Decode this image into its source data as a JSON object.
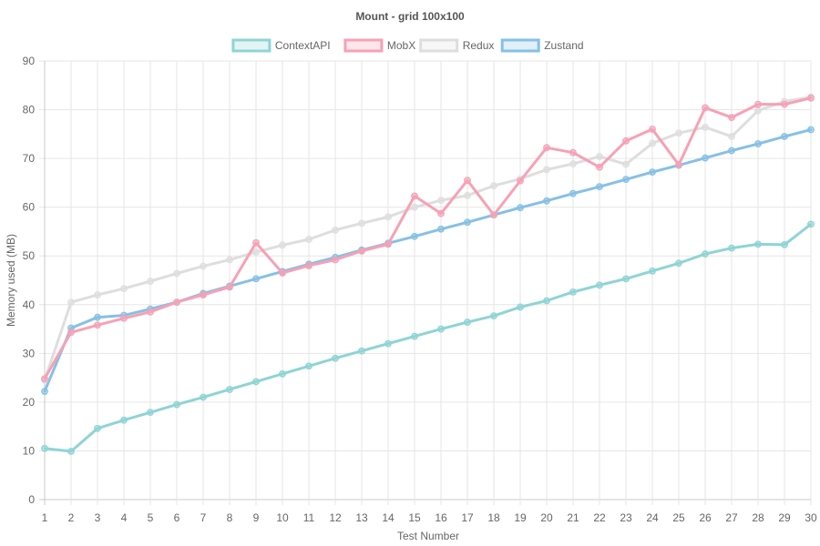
{
  "chart_data": {
    "type": "line",
    "title": "Mount - grid 100x100",
    "xlabel": "Test Number",
    "ylabel": "Memory used (MB)",
    "x": [
      1,
      2,
      3,
      4,
      5,
      6,
      7,
      8,
      9,
      10,
      11,
      12,
      13,
      14,
      15,
      16,
      17,
      18,
      19,
      20,
      21,
      22,
      23,
      24,
      25,
      26,
      27,
      28,
      29,
      30
    ],
    "ylim": [
      0,
      90
    ],
    "yticks": [
      0,
      10,
      20,
      30,
      40,
      50,
      60,
      70,
      80,
      90
    ],
    "grid": true,
    "legend_position": "top",
    "series": [
      {
        "name": "ContextAPI",
        "color": "#8fd4d4",
        "values": [
          10.5,
          9.9,
          14.6,
          16.3,
          17.9,
          19.5,
          21.0,
          22.6,
          24.2,
          25.8,
          27.4,
          29.0,
          30.5,
          32.0,
          33.5,
          35.0,
          36.4,
          37.7,
          39.5,
          40.8,
          42.6,
          44.0,
          45.3,
          46.9,
          48.5,
          50.4,
          51.6,
          52.4,
          52.3,
          56.5
        ]
      },
      {
        "name": "MobX",
        "color": "#f7a1b5",
        "values": [
          24.8,
          34.3,
          35.8,
          37.2,
          38.5,
          40.5,
          42.0,
          43.6,
          52.7,
          46.5,
          48.0,
          49.2,
          51.0,
          52.4,
          62.3,
          58.7,
          65.5,
          58.4,
          65.4,
          72.2,
          71.2,
          68.2,
          73.6,
          76.0,
          68.7,
          80.4,
          78.4,
          81.1,
          81.1,
          82.4
        ]
      },
      {
        "name": "Redux",
        "color": "#dedede",
        "values": [
          24.5,
          40.5,
          42.0,
          43.3,
          44.8,
          46.4,
          47.9,
          49.2,
          50.8,
          52.2,
          53.4,
          55.3,
          56.7,
          58.0,
          60.0,
          61.4,
          62.4,
          64.4,
          65.8,
          67.7,
          68.9,
          70.4,
          68.8,
          73.1,
          75.2,
          76.4,
          74.5,
          79.8,
          81.7,
          82.6
        ]
      },
      {
        "name": "Zustand",
        "color": "#86c0e6",
        "values": [
          22.2,
          35.2,
          37.4,
          37.8,
          39.1,
          40.5,
          42.3,
          43.8,
          45.3,
          46.8,
          48.3,
          49.7,
          51.2,
          52.6,
          54.0,
          55.5,
          56.9,
          58.4,
          59.9,
          61.3,
          62.8,
          64.2,
          65.7,
          67.2,
          68.6,
          70.1,
          71.6,
          73.0,
          74.5,
          75.9
        ]
      }
    ]
  }
}
